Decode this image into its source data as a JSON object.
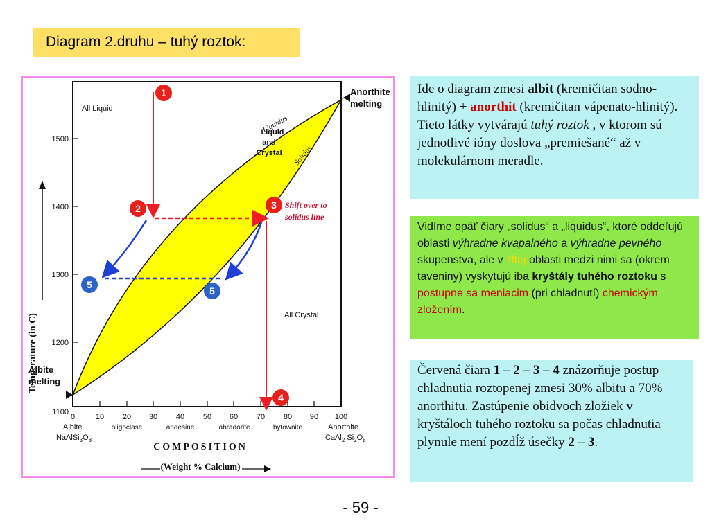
{
  "slide_title": "Diagram 2.druhu – tuhý roztok:",
  "diagram": {
    "y_axis_title": "Temperature (in C)",
    "y_ticks": [
      "1500",
      "1400",
      "1300",
      "1200",
      "1100"
    ],
    "x_ticks": [
      "0",
      "10",
      "20",
      "30",
      "40",
      "50",
      "60",
      "70",
      "80",
      "90",
      "100"
    ],
    "mineral_names": [
      "oligoclase",
      "andesine",
      "labradorite",
      "bytownite"
    ],
    "left_end_name": "Albite",
    "left_end_formula_main": "NaAlSi",
    "left_end_formula_sub1": "3",
    "left_end_formula_mid": "O",
    "left_end_formula_sub2": "8",
    "right_end_name": "Anorthite",
    "right_end_formula_main": "CaAl",
    "right_end_formula_sub1": "2",
    "right_end_formula_mid": " Si",
    "right_end_formula_sub2": "2",
    "right_end_formula_mid2": "O",
    "right_end_formula_sub3": "8",
    "x_axis_title": "COMPOSITION",
    "x_axis_subtitle": "(Weight % Calcium)",
    "region_liquid": "All Liquid",
    "region_crystal": "All Crystal",
    "region_mix_line1": "Liquid",
    "region_mix_line2": "and",
    "region_mix_line3": "Crystal",
    "curve_liquidus": "Liquidus",
    "curve_solidus": "Solidus",
    "anorthite_melting_line1": "Anorthite",
    "anorthite_melting_line2": "melting",
    "albite_melting_line1": "Albite",
    "albite_melting_line2": "melting",
    "shift_note_line1": "Shift over to",
    "shift_note_line2": "solidus line",
    "markers": [
      "1",
      "2",
      "3",
      "4",
      "5",
      "5"
    ],
    "colors": {
      "fill": "#ffff00",
      "red": "#ee1c24",
      "blue": "#1f3fd6",
      "marker_red": "#e8201c",
      "marker_blue": "#2a64c8"
    }
  },
  "box1": {
    "t1": "Ide o diagram zmesi  ",
    "t2": "albit",
    "t3": " (kremičitan sodno-hlinitý)  + ",
    "t4": "anorthit",
    "t5": " (kremičitan vápenato-hlinitý).",
    "t6": "  Tieto látky vytvárajú ",
    "t7": "tuhý roztok",
    "t8": " , v ktorom sú jednotlivé ióny doslova „premiešané“ až v molekulárnom meradle."
  },
  "box2": {
    "t1": "Vidíme opäť čiary „solidus“ a „liquidus“, ktoré oddeľujú oblasti ",
    "t2": "výhradne kvapalného",
    "t3": " a ",
    "t4": "výhradne pevného",
    "t5": " skupenstva, ale v ",
    "t6": "žltej",
    "t7": " oblasti medzi nimi sa (okrem taveniny) vyskytujú iba ",
    "t8": "kryštály tuhého roztoku",
    "t9": " s ",
    "t10": "postupne sa meniacim",
    "t11": " (pri chladnutí) ",
    "t12": "chemickým zložením",
    "t13": "."
  },
  "box3": {
    "t1": "Červená čiara ",
    "t2": "1 – 2 – 3 – 4",
    "t3": " znázorňuje postup chladnutia roztopenej zmesi  30% albitu a 70% anorthitu.  Zastúpenie obidvoch zložiek v kryštáloch tuhého roztoku sa počas chladnutia plynule mení pozdĺž úsečky ",
    "t4": "2 – 3",
    "t5": "."
  },
  "page_number": "-  59  -"
}
